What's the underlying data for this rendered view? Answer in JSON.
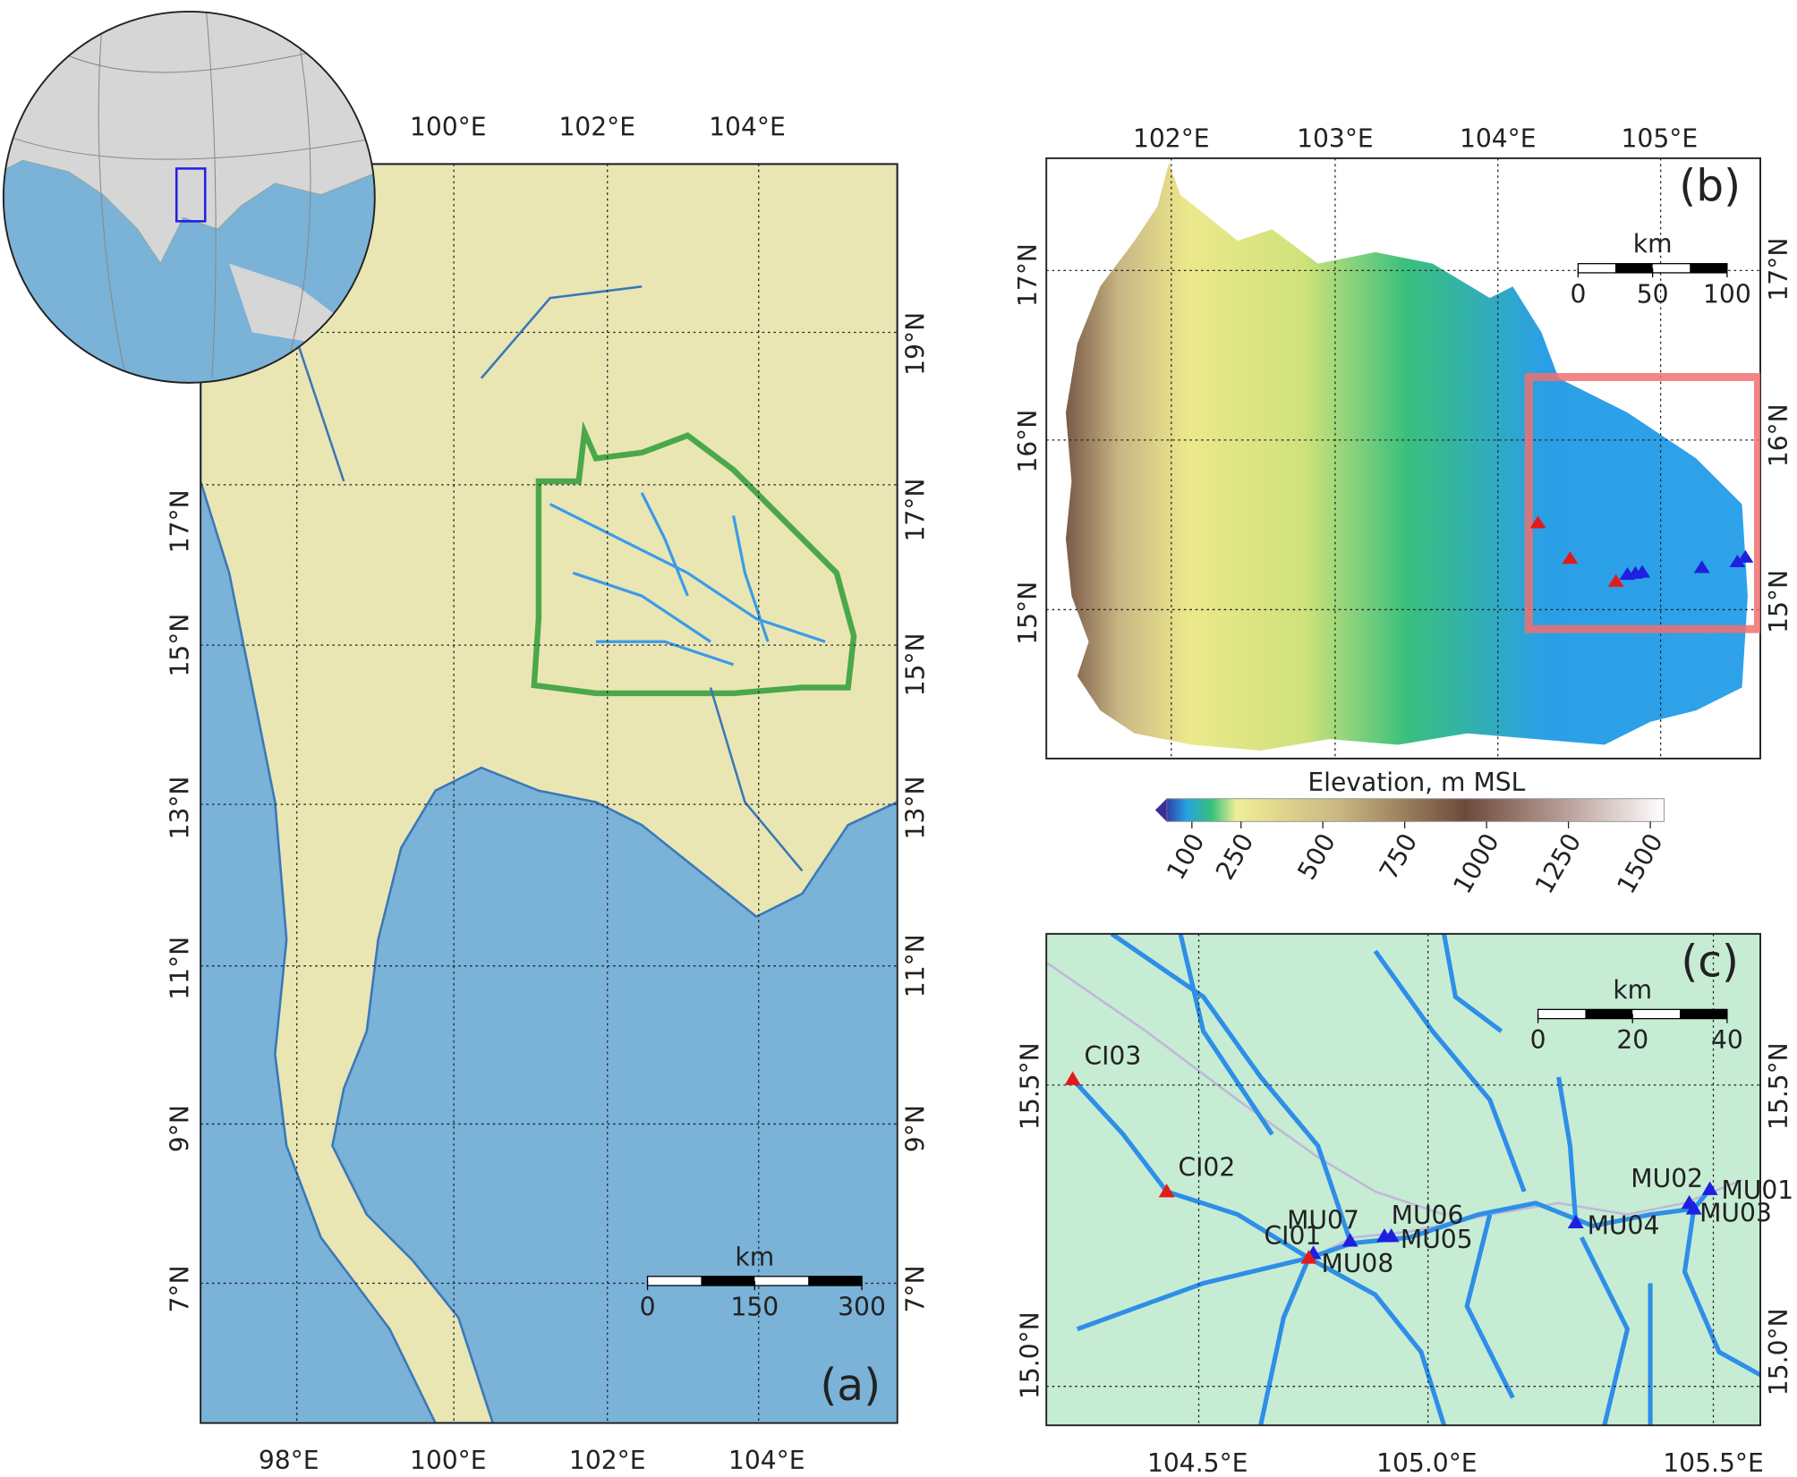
{
  "panels": {
    "a": {
      "label": "(a)",
      "lon_labels_top": [
        "100°E",
        "102°E",
        "104°E"
      ],
      "lon_labels_bottom": [
        "98°E",
        "100°E",
        "102°E",
        "104°E"
      ],
      "lat_labels_left": [
        "17°N",
        "15°N",
        "13°N",
        "11°N",
        "9°N",
        "7°N"
      ],
      "lat_labels_right": [
        "19°N",
        "17°N",
        "15°N",
        "13°N",
        "11°N",
        "9°N",
        "7°N"
      ],
      "scale_bar": {
        "unit": "km",
        "ticks": [
          0,
          150,
          300
        ]
      }
    },
    "b": {
      "label": "(b)",
      "lon_labels_top": [
        "102°E",
        "103°E",
        "104°E",
        "105°E"
      ],
      "lat_labels_left": [
        "17°N",
        "16°N",
        "15°N"
      ],
      "lat_labels_right": [
        "17°N",
        "16°N",
        "15°N"
      ],
      "scale_bar": {
        "unit": "km",
        "ticks": [
          0,
          50,
          100
        ]
      },
      "colorbar": {
        "label": "Elevation, m MSL",
        "ticks": [
          100,
          250,
          500,
          750,
          1000,
          1250,
          1500
        ]
      }
    },
    "c": {
      "label": "(c)",
      "lon_labels_bottom": [
        "104.5°E",
        "105.0°E",
        "105.5°E"
      ],
      "lat_labels_left": [
        "15.5°N",
        "15.0°N"
      ],
      "lat_labels_right": [
        "15.5°N",
        "15.0°N"
      ],
      "scale_bar": {
        "unit": "km",
        "ticks": [
          0,
          20,
          40
        ]
      },
      "stations": [
        {
          "label": "CI03",
          "color": "#e31a1c"
        },
        {
          "label": "CI02",
          "color": "#e31a1c"
        },
        {
          "label": "CI01",
          "color": "#e31a1c"
        },
        {
          "label": "MU08",
          "color": "#1f1fe0"
        },
        {
          "label": "MU07",
          "color": "#1f1fe0"
        },
        {
          "label": "MU06",
          "color": "#1f1fe0"
        },
        {
          "label": "MU05",
          "color": "#1f1fe0"
        },
        {
          "label": "MU04",
          "color": "#1f1fe0"
        },
        {
          "label": "MU02",
          "color": "#1f1fe0"
        },
        {
          "label": "MU01",
          "color": "#1f1fe0"
        },
        {
          "label": "MU03",
          "color": "#1f1fe0"
        }
      ]
    }
  }
}
